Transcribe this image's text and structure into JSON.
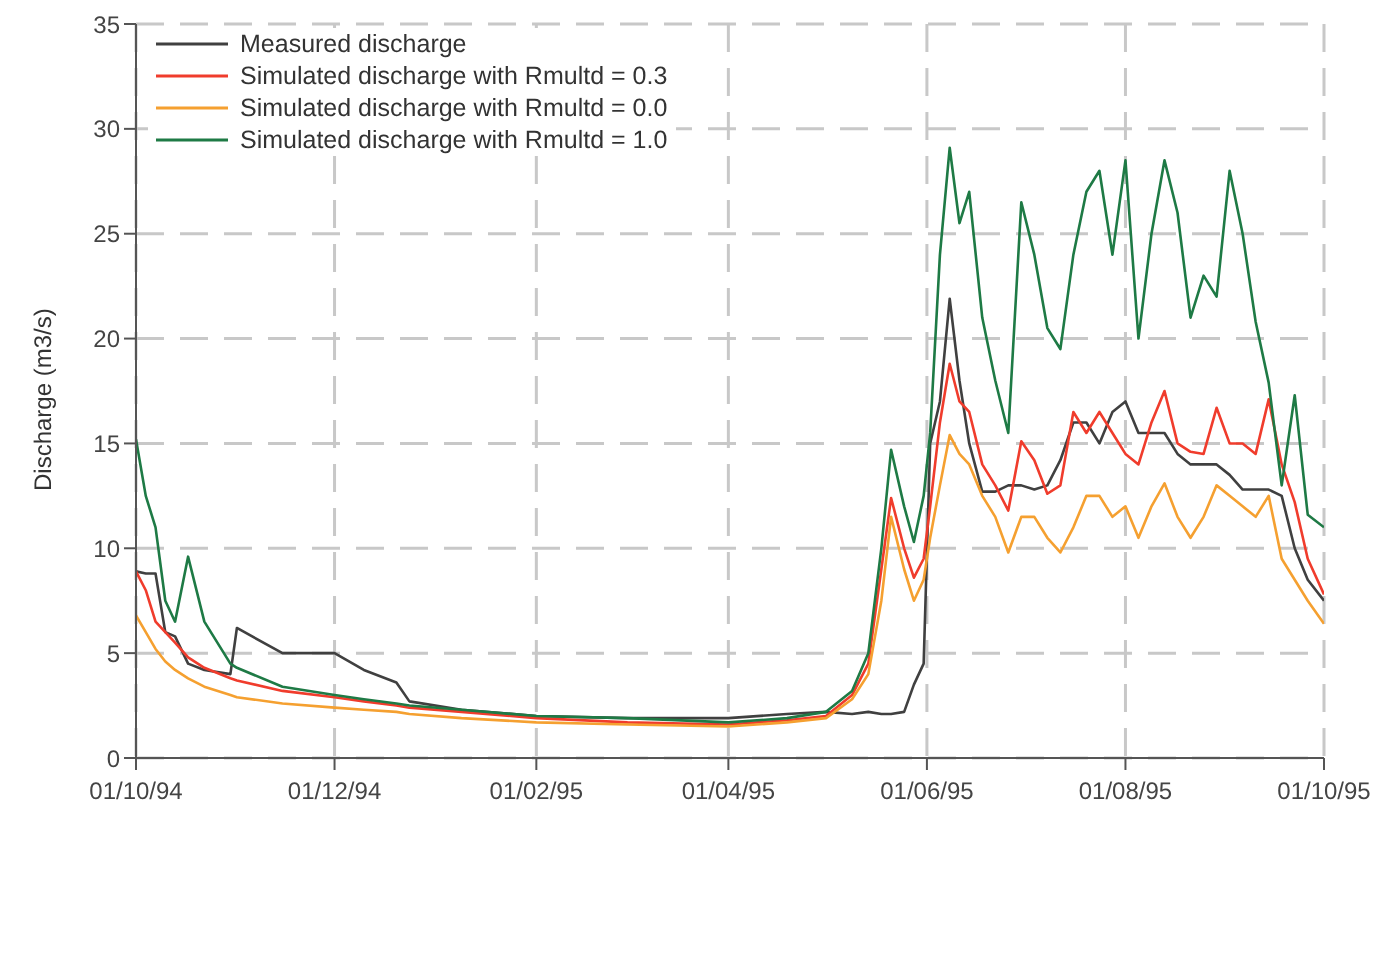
{
  "chart_data": {
    "type": "line",
    "ylabel": "Discharge (m3/s)",
    "x": [
      "1994-10-01",
      "1994-10-04",
      "1994-10-07",
      "1994-10-10",
      "1994-10-13",
      "1994-10-17",
      "1994-10-22",
      "1994-10-30",
      "1994-11-01",
      "1994-11-15",
      "1994-12-01",
      "1994-12-10",
      "1994-12-20",
      "1994-12-24",
      "1995-01-09",
      "1995-02-01",
      "1995-03-01",
      "1995-04-01",
      "1995-04-19",
      "1995-05-01",
      "1995-05-09",
      "1995-05-14",
      "1995-05-18",
      "1995-05-21",
      "1995-05-25",
      "1995-05-28",
      "1995-05-31",
      "1995-06-02",
      "1995-06-05",
      "1995-06-08",
      "1995-06-11",
      "1995-06-14",
      "1995-06-18",
      "1995-06-22",
      "1995-06-26",
      "1995-06-30",
      "1995-07-04",
      "1995-07-08",
      "1995-07-12",
      "1995-07-16",
      "1995-07-20",
      "1995-07-24",
      "1995-07-28",
      "1995-08-01",
      "1995-08-05",
      "1995-08-09",
      "1995-08-13",
      "1995-08-17",
      "1995-08-21",
      "1995-08-25",
      "1995-08-29",
      "1995-09-02",
      "1995-09-06",
      "1995-09-10",
      "1995-09-14",
      "1995-09-18",
      "1995-09-22",
      "1995-09-26",
      "1995-10-01"
    ],
    "series": [
      {
        "name": "Measured discharge",
        "color": "#404040",
        "values": [
          8.9,
          8.8,
          8.8,
          6.0,
          5.8,
          4.5,
          4.2,
          4.0,
          6.2,
          5.0,
          5.0,
          4.2,
          3.6,
          2.7,
          2.3,
          2.0,
          1.9,
          1.9,
          2.1,
          2.2,
          2.1,
          2.2,
          2.1,
          2.1,
          2.2,
          3.5,
          4.5,
          15,
          17,
          21.9,
          18,
          15,
          12.7,
          12.7,
          13,
          13,
          12.8,
          13,
          14.2,
          16,
          16,
          15,
          16.5,
          17,
          15.5,
          15.5,
          15.5,
          14.5,
          14,
          14,
          14,
          13.5,
          12.8,
          12.8,
          12.8,
          12.5,
          10,
          8.5,
          7.5
        ]
      },
      {
        "name": "Simulated discharge with Rmultd = 0.3",
        "color": "#f03c2c",
        "values": [
          8.9,
          8.0,
          6.5,
          6.0,
          5.5,
          4.8,
          4.3,
          3.8,
          3.7,
          3.2,
          2.9,
          2.7,
          2.5,
          2.4,
          2.2,
          1.9,
          1.7,
          1.6,
          1.8,
          2.0,
          3.0,
          4.5,
          9,
          12.4,
          10,
          8.6,
          9.5,
          12,
          16,
          18.8,
          17,
          16.5,
          14,
          13,
          11.8,
          15.1,
          14.2,
          12.6,
          13,
          16.5,
          15.5,
          16.5,
          15.5,
          14.5,
          14,
          16,
          17.5,
          15,
          14.6,
          14.5,
          16.7,
          15,
          15,
          14.5,
          17.1,
          14,
          12.2,
          9.5,
          7.8
        ]
      },
      {
        "name": "Simulated discharge with Rmultd = 0.0",
        "color": "#f5a030",
        "values": [
          6.8,
          6.0,
          5.2,
          4.6,
          4.2,
          3.8,
          3.4,
          3.0,
          2.9,
          2.6,
          2.4,
          2.3,
          2.2,
          2.1,
          1.9,
          1.7,
          1.6,
          1.5,
          1.7,
          1.9,
          2.8,
          4.0,
          7.5,
          11.5,
          9,
          7.5,
          8.5,
          10.5,
          13,
          15.4,
          14.5,
          14,
          12.5,
          11.5,
          9.8,
          11.5,
          11.5,
          10.5,
          9.8,
          11,
          12.5,
          12.5,
          11.5,
          12,
          10.5,
          12,
          13.1,
          11.5,
          10.5,
          11.5,
          13,
          12.5,
          12,
          11.5,
          12.5,
          9.5,
          8.5,
          7.5,
          6.4
        ]
      },
      {
        "name": "Simulated discharge with Rmultd = 1.0",
        "color": "#1e7a45",
        "values": [
          15.2,
          12.5,
          11,
          7.5,
          6.5,
          9.6,
          6.5,
          4.5,
          4.3,
          3.4,
          3.0,
          2.8,
          2.6,
          2.5,
          2.3,
          2.0,
          1.9,
          1.7,
          1.9,
          2.2,
          3.2,
          5,
          10,
          14.7,
          12,
          10.3,
          12.5,
          15.5,
          24,
          29.1,
          25.5,
          27,
          21,
          18,
          15.5,
          26.5,
          24,
          20.5,
          19.5,
          24,
          27,
          28,
          24,
          28.5,
          20,
          25,
          28.5,
          26,
          21,
          23,
          22,
          28,
          25,
          20.8,
          17.9,
          13,
          17.3,
          11.6,
          11
        ]
      }
    ],
    "xlim": [
      "1994-10-01",
      "1995-10-01"
    ],
    "xticks": [
      {
        "value": "1994-10-01",
        "label": "01/10/94"
      },
      {
        "value": "1994-12-01",
        "label": "01/12/94"
      },
      {
        "value": "1995-02-01",
        "label": "01/02/95"
      },
      {
        "value": "1995-04-01",
        "label": "01/04/95"
      },
      {
        "value": "1995-06-01",
        "label": "01/06/95"
      },
      {
        "value": "1995-08-01",
        "label": "01/08/95"
      },
      {
        "value": "1995-10-01",
        "label": "01/10/95"
      }
    ],
    "ylim": [
      0,
      35
    ],
    "yticks": [
      0,
      5,
      10,
      15,
      20,
      25,
      30,
      35
    ],
    "grid": true,
    "legend": "top left",
    "marker": "none",
    "line_style": "solid"
  }
}
